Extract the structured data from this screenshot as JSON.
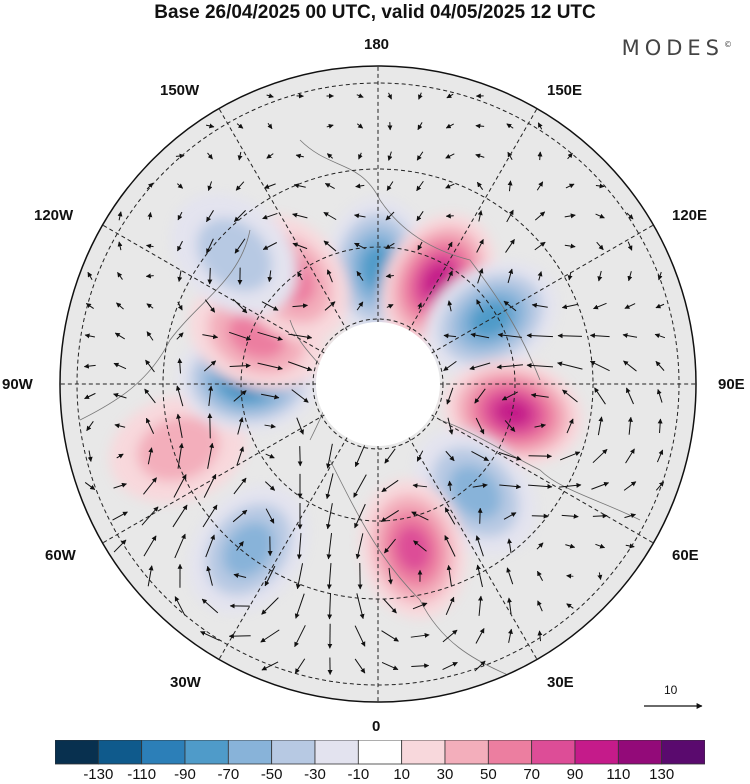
{
  "header": {
    "title": "Base 26/04/2025 00 UTC, valid 04/05/2025 12 UTC",
    "brand": "MODES",
    "brand_mark": "©"
  },
  "longitude_labels": {
    "top": "180",
    "bottom": "0",
    "left": "90W",
    "right": "90E",
    "upper_left_outer": "150W",
    "upper_left_inner": "120W",
    "upper_right_outer": "150E",
    "upper_right_inner": "120E",
    "lower_left_inner": "60W",
    "lower_left_outer": "30W",
    "lower_right_inner": "60E",
    "lower_right_outer": "30E"
  },
  "vector_legend": {
    "value": "10",
    "icon": "arrow-right-icon"
  },
  "colorbar": {
    "tick_labels": [
      "-130",
      "-110",
      "-90",
      "-70",
      "-50",
      "-30",
      "-10",
      "10",
      "30",
      "50",
      "70",
      "90",
      "110",
      "130"
    ],
    "colors": [
      "#08304f",
      "#0f5a8c",
      "#2c7fb8",
      "#4f9bc9",
      "#88b3d9",
      "#b7c9e3",
      "#e3e3ef",
      "#ffffff",
      "#f8d8dc",
      "#f3aebb",
      "#ec7ea0",
      "#dd4d97",
      "#c51b8a",
      "#930a79",
      "#5a0a6e"
    ]
  },
  "map": {
    "projection": "north-polar-stereographic",
    "background_fill": "#e8e8e8",
    "anomalies": [
      {
        "lon": 180,
        "lat": 56,
        "value": -80
      },
      {
        "lon": 150,
        "lat": 55,
        "value": 110
      },
      {
        "lon": 120,
        "lat": 52,
        "value": -95
      },
      {
        "lon": 78,
        "lat": 50,
        "value": 105
      },
      {
        "lon": 42,
        "lat": 48,
        "value": -75
      },
      {
        "lon": 12,
        "lat": 42,
        "value": 80
      },
      {
        "lon": -38,
        "lat": 32,
        "value": -70
      },
      {
        "lon": -72,
        "lat": 32,
        "value": 50
      },
      {
        "lon": -92,
        "lat": 52,
        "value": -100
      },
      {
        "lon": -112,
        "lat": 52,
        "value": 60
      },
      {
        "lon": -140,
        "lat": 50,
        "value": 70
      },
      {
        "lon": -132,
        "lat": 36,
        "value": -40
      }
    ]
  }
}
